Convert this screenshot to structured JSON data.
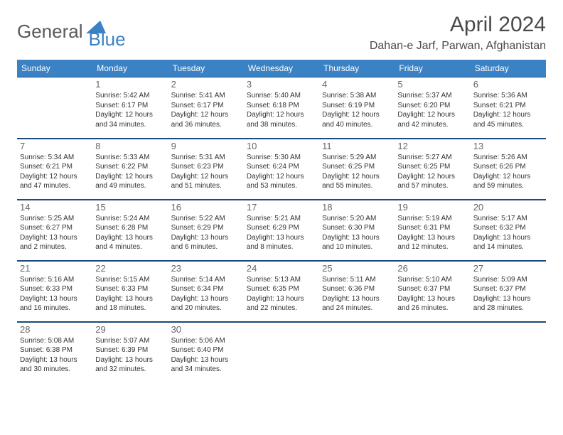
{
  "logo": {
    "part1": "General",
    "part2": "Blue"
  },
  "title": "April 2024",
  "location": "Dahan-e Jarf, Parwan, Afghanistan",
  "colors": {
    "header_bg": "#3b82c4",
    "header_border": "#1a4a7a",
    "text": "#333333",
    "muted": "#666666",
    "logo_gray": "#5a5a5a",
    "logo_blue": "#3b82c4",
    "background": "#ffffff"
  },
  "typography": {
    "title_fontsize": 30,
    "location_fontsize": 16,
    "header_fontsize": 12,
    "daynum_fontsize": 13,
    "cell_fontsize": 10
  },
  "calendar": {
    "type": "table",
    "columns": [
      "Sunday",
      "Monday",
      "Tuesday",
      "Wednesday",
      "Thursday",
      "Friday",
      "Saturday"
    ],
    "weeks": [
      [
        null,
        {
          "n": "1",
          "sunrise": "5:42 AM",
          "sunset": "6:17 PM",
          "daylight": "12 hours and 34 minutes."
        },
        {
          "n": "2",
          "sunrise": "5:41 AM",
          "sunset": "6:17 PM",
          "daylight": "12 hours and 36 minutes."
        },
        {
          "n": "3",
          "sunrise": "5:40 AM",
          "sunset": "6:18 PM",
          "daylight": "12 hours and 38 minutes."
        },
        {
          "n": "4",
          "sunrise": "5:38 AM",
          "sunset": "6:19 PM",
          "daylight": "12 hours and 40 minutes."
        },
        {
          "n": "5",
          "sunrise": "5:37 AM",
          "sunset": "6:20 PM",
          "daylight": "12 hours and 42 minutes."
        },
        {
          "n": "6",
          "sunrise": "5:36 AM",
          "sunset": "6:21 PM",
          "daylight": "12 hours and 45 minutes."
        }
      ],
      [
        {
          "n": "7",
          "sunrise": "5:34 AM",
          "sunset": "6:21 PM",
          "daylight": "12 hours and 47 minutes."
        },
        {
          "n": "8",
          "sunrise": "5:33 AM",
          "sunset": "6:22 PM",
          "daylight": "12 hours and 49 minutes."
        },
        {
          "n": "9",
          "sunrise": "5:31 AM",
          "sunset": "6:23 PM",
          "daylight": "12 hours and 51 minutes."
        },
        {
          "n": "10",
          "sunrise": "5:30 AM",
          "sunset": "6:24 PM",
          "daylight": "12 hours and 53 minutes."
        },
        {
          "n": "11",
          "sunrise": "5:29 AM",
          "sunset": "6:25 PM",
          "daylight": "12 hours and 55 minutes."
        },
        {
          "n": "12",
          "sunrise": "5:27 AM",
          "sunset": "6:25 PM",
          "daylight": "12 hours and 57 minutes."
        },
        {
          "n": "13",
          "sunrise": "5:26 AM",
          "sunset": "6:26 PM",
          "daylight": "12 hours and 59 minutes."
        }
      ],
      [
        {
          "n": "14",
          "sunrise": "5:25 AM",
          "sunset": "6:27 PM",
          "daylight": "13 hours and 2 minutes."
        },
        {
          "n": "15",
          "sunrise": "5:24 AM",
          "sunset": "6:28 PM",
          "daylight": "13 hours and 4 minutes."
        },
        {
          "n": "16",
          "sunrise": "5:22 AM",
          "sunset": "6:29 PM",
          "daylight": "13 hours and 6 minutes."
        },
        {
          "n": "17",
          "sunrise": "5:21 AM",
          "sunset": "6:29 PM",
          "daylight": "13 hours and 8 minutes."
        },
        {
          "n": "18",
          "sunrise": "5:20 AM",
          "sunset": "6:30 PM",
          "daylight": "13 hours and 10 minutes."
        },
        {
          "n": "19",
          "sunrise": "5:19 AM",
          "sunset": "6:31 PM",
          "daylight": "13 hours and 12 minutes."
        },
        {
          "n": "20",
          "sunrise": "5:17 AM",
          "sunset": "6:32 PM",
          "daylight": "13 hours and 14 minutes."
        }
      ],
      [
        {
          "n": "21",
          "sunrise": "5:16 AM",
          "sunset": "6:33 PM",
          "daylight": "13 hours and 16 minutes."
        },
        {
          "n": "22",
          "sunrise": "5:15 AM",
          "sunset": "6:33 PM",
          "daylight": "13 hours and 18 minutes."
        },
        {
          "n": "23",
          "sunrise": "5:14 AM",
          "sunset": "6:34 PM",
          "daylight": "13 hours and 20 minutes."
        },
        {
          "n": "24",
          "sunrise": "5:13 AM",
          "sunset": "6:35 PM",
          "daylight": "13 hours and 22 minutes."
        },
        {
          "n": "25",
          "sunrise": "5:11 AM",
          "sunset": "6:36 PM",
          "daylight": "13 hours and 24 minutes."
        },
        {
          "n": "26",
          "sunrise": "5:10 AM",
          "sunset": "6:37 PM",
          "daylight": "13 hours and 26 minutes."
        },
        {
          "n": "27",
          "sunrise": "5:09 AM",
          "sunset": "6:37 PM",
          "daylight": "13 hours and 28 minutes."
        }
      ],
      [
        {
          "n": "28",
          "sunrise": "5:08 AM",
          "sunset": "6:38 PM",
          "daylight": "13 hours and 30 minutes."
        },
        {
          "n": "29",
          "sunrise": "5:07 AM",
          "sunset": "6:39 PM",
          "daylight": "13 hours and 32 minutes."
        },
        {
          "n": "30",
          "sunrise": "5:06 AM",
          "sunset": "6:40 PM",
          "daylight": "13 hours and 34 minutes."
        },
        null,
        null,
        null,
        null
      ]
    ],
    "labels": {
      "sunrise": "Sunrise:",
      "sunset": "Sunset:",
      "daylight": "Daylight:"
    }
  }
}
